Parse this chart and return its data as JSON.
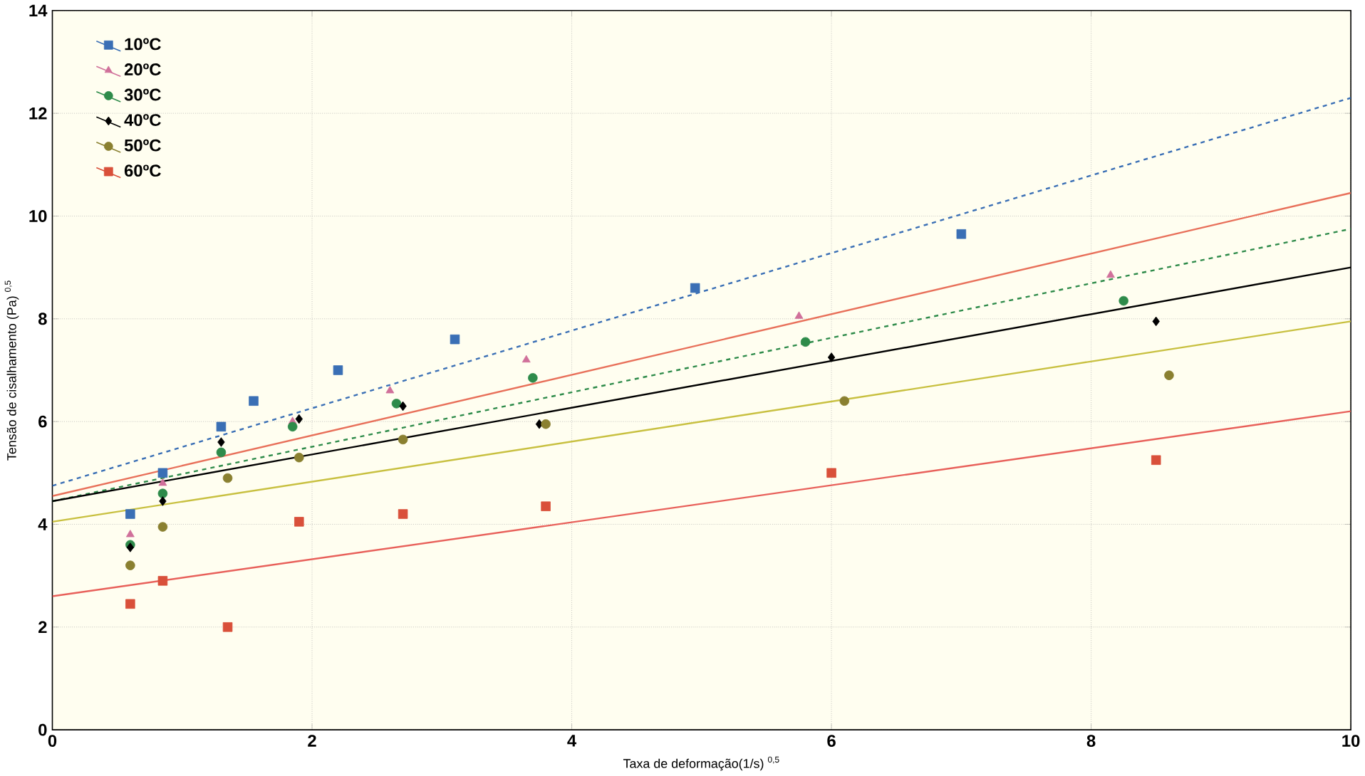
{
  "chart_data": {
    "type": "scatter",
    "xlabel": "Taxa de deformação(1/s) $^{0,5}$",
    "ylabel": "Tensão de cisalhamento (Pa) $^{0,5}$",
    "xlim": [
      0,
      10
    ],
    "ylim": [
      0,
      14
    ],
    "xticks": [
      0,
      2,
      4,
      6,
      8,
      10
    ],
    "yticks": [
      0,
      2,
      4,
      6,
      8,
      10,
      12,
      14
    ],
    "grid": true,
    "legend": "top left",
    "series": [
      {
        "name": "10ºC",
        "color": "#3a6fb5",
        "marker": "square",
        "x": [
          0.6,
          0.85,
          1.3,
          1.55,
          2.2,
          3.1,
          4.95,
          7.0
        ],
        "values": [
          4.2,
          5.0,
          5.9,
          6.4,
          7.0,
          7.6,
          8.6,
          9.65
        ]
      },
      {
        "name": "20ºC",
        "color": "#d0709a",
        "marker": "triangle",
        "x": [
          0.6,
          0.85,
          1.85,
          2.6,
          3.65,
          5.75,
          8.15
        ],
        "values": [
          3.8,
          4.8,
          6.0,
          6.6,
          7.2,
          8.05,
          8.85
        ]
      },
      {
        "name": "30ºC",
        "color": "#2e8b4a",
        "marker": "circle",
        "x": [
          0.6,
          0.85,
          1.3,
          1.85,
          2.65,
          3.7,
          5.8,
          8.25
        ],
        "values": [
          3.6,
          4.6,
          5.4,
          5.9,
          6.35,
          6.85,
          7.55,
          8.35
        ]
      },
      {
        "name": "40ºC",
        "color": "#000000",
        "marker": "diamond",
        "x": [
          0.6,
          0.85,
          1.3,
          1.9,
          2.7,
          3.75,
          6.0,
          8.5
        ],
        "values": [
          3.55,
          4.45,
          5.6,
          6.05,
          6.3,
          5.95,
          7.25,
          7.95
        ]
      },
      {
        "name": "50ºC",
        "color": "#8a8030",
        "marker": "circle",
        "x": [
          0.6,
          0.85,
          1.35,
          1.9,
          2.7,
          3.8,
          6.1,
          8.6
        ],
        "values": [
          3.2,
          3.95,
          4.9,
          5.3,
          5.65,
          5.95,
          6.4,
          6.9
        ]
      },
      {
        "name": "60ºC",
        "color": "#d9503a",
        "marker": "square",
        "x": [
          0.6,
          0.85,
          1.35,
          1.9,
          2.7,
          3.8,
          6.0,
          8.5
        ],
        "values": [
          2.45,
          2.9,
          2.0,
          4.05,
          4.2,
          4.35,
          5.0,
          5.25
        ]
      },
      {
        "type": "line",
        "color": "#3a6fb5",
        "line_style": "dashed",
        "x": [
          0,
          10
        ],
        "values": [
          4.75,
          12.3
        ]
      },
      {
        "type": "line",
        "color": "#e8705a",
        "line_style": "solid",
        "x": [
          0,
          10
        ],
        "values": [
          4.55,
          10.45
        ]
      },
      {
        "type": "line",
        "color": "#2e8b4a",
        "line_style": "dashed",
        "x": [
          0,
          10
        ],
        "values": [
          4.45,
          9.75
        ]
      },
      {
        "type": "line",
        "color": "#000000",
        "line_style": "solid",
        "x": [
          0,
          10
        ],
        "values": [
          4.45,
          9.0
        ]
      },
      {
        "type": "line",
        "color": "#c8c040",
        "line_style": "solid",
        "x": [
          0,
          10
        ],
        "values": [
          4.05,
          7.95
        ]
      },
      {
        "type": "line",
        "color": "#e8605a",
        "line_style": "solid",
        "x": [
          0,
          10
        ],
        "values": [
          2.6,
          6.2
        ]
      }
    ]
  }
}
